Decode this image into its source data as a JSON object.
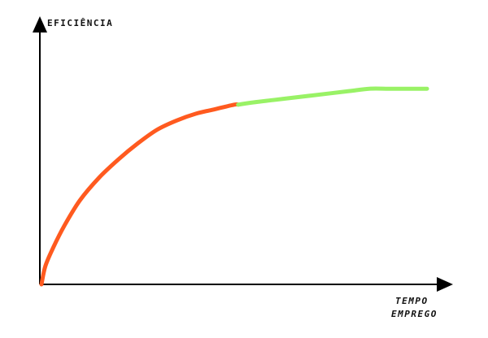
{
  "chart_data": {
    "type": "line",
    "ylabel": "EFICIÊNCIA",
    "xlabel_lines": [
      "TEMPO",
      "EMPREGO"
    ],
    "grid": false,
    "xlim": [
      0,
      100
    ],
    "ylim": [
      0,
      100
    ],
    "series": [
      {
        "color": "#ff5a1f",
        "points": [
          [
            0,
            0
          ],
          [
            1,
            8
          ],
          [
            3,
            16
          ],
          [
            6,
            26
          ],
          [
            10,
            37
          ],
          [
            15,
            47
          ],
          [
            20,
            55
          ],
          [
            25,
            62
          ],
          [
            30,
            68
          ],
          [
            35,
            72
          ],
          [
            40,
            75
          ],
          [
            45,
            77
          ],
          [
            50,
            79
          ],
          [
            51,
            79
          ]
        ]
      },
      {
        "color": "#99f266",
        "points": [
          [
            51,
            79
          ],
          [
            55,
            80
          ],
          [
            60,
            81
          ],
          [
            65,
            82
          ],
          [
            70,
            83
          ],
          [
            75,
            84
          ],
          [
            80,
            85
          ],
          [
            85,
            86
          ],
          [
            90,
            86
          ],
          [
            95,
            86
          ],
          [
            100,
            86
          ]
        ]
      }
    ]
  }
}
